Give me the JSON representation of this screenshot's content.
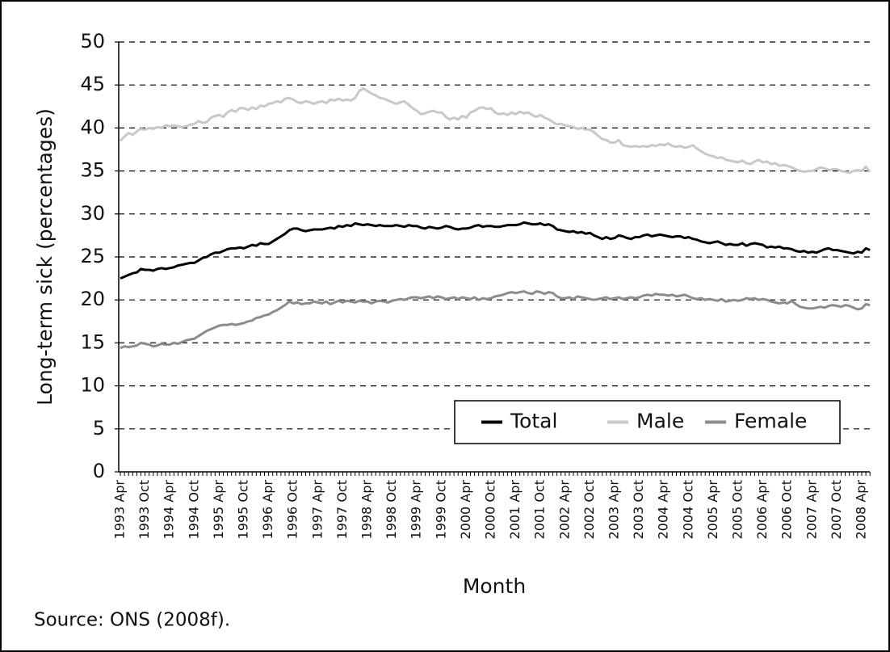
{
  "chart_data": {
    "type": "line",
    "y_label": "Long-term sick (percentages)",
    "x_label": "Month",
    "source": "Source: ONS (2008f).",
    "legend": "lower right",
    "grid": true,
    "ylim": [
      0,
      50
    ],
    "yticks": [
      0,
      5,
      10,
      15,
      20,
      25,
      30,
      35,
      40,
      45,
      50
    ],
    "categories": [
      "1993 Apr",
      null,
      null,
      null,
      null,
      null,
      "1993 Oct",
      null,
      null,
      null,
      null,
      null,
      "1994 Apr",
      null,
      null,
      null,
      null,
      null,
      "1994 Oct",
      null,
      null,
      null,
      null,
      null,
      "1995 Apr",
      null,
      null,
      null,
      null,
      null,
      "1995 Oct",
      null,
      null,
      null,
      null,
      null,
      "1996 Apr",
      null,
      null,
      null,
      null,
      null,
      "1996 Oct",
      null,
      null,
      null,
      null,
      null,
      "1997 Apr",
      null,
      null,
      null,
      null,
      null,
      "1997 Oct",
      null,
      null,
      null,
      null,
      null,
      "1998 Apr",
      null,
      null,
      null,
      null,
      null,
      "1998 Oct",
      null,
      null,
      null,
      null,
      null,
      "1999 Apr",
      null,
      null,
      null,
      null,
      null,
      "1999 Oct",
      null,
      null,
      null,
      null,
      null,
      "2000 Apr",
      null,
      null,
      null,
      null,
      null,
      "2000 Oct",
      null,
      null,
      null,
      null,
      null,
      "2001 Apr",
      null,
      null,
      null,
      null,
      null,
      "2001 Oct",
      null,
      null,
      null,
      null,
      null,
      "2002 Apr",
      null,
      null,
      null,
      null,
      null,
      "2002 Oct",
      null,
      null,
      null,
      null,
      null,
      "2003 Apr",
      null,
      null,
      null,
      null,
      null,
      "2003 Oct",
      null,
      null,
      null,
      null,
      null,
      "2004 Apr",
      null,
      null,
      null,
      null,
      null,
      "2004 Oct",
      null,
      null,
      null,
      null,
      null,
      "2005 Apr",
      null,
      null,
      null,
      null,
      null,
      "2005 Oct",
      null,
      null,
      null,
      null,
      null,
      "2006 Apr",
      null,
      null,
      null,
      null,
      null,
      "2006 Oct",
      null,
      null,
      null,
      null,
      null,
      "2007 Apr",
      null,
      null,
      null,
      null,
      null,
      "2007 Oct",
      null,
      null,
      null,
      null,
      null,
      "2008 Apr",
      null,
      null
    ],
    "series": [
      {
        "name": "Total",
        "color": "#000000",
        "values": [
          22.5,
          22.7,
          22.9,
          23.1,
          23.2,
          23.6,
          23.5,
          23.5,
          23.4,
          23.6,
          23.7,
          23.6,
          23.7,
          23.8,
          24.0,
          24.1,
          24.2,
          24.3,
          24.3,
          24.6,
          24.9,
          25.0,
          25.3,
          25.5,
          25.5,
          25.7,
          25.9,
          26.0,
          26.0,
          26.1,
          26.0,
          26.2,
          26.4,
          26.3,
          26.6,
          26.5,
          26.5,
          26.8,
          27.1,
          27.4,
          27.7,
          28.1,
          28.3,
          28.3,
          28.1,
          28.0,
          28.1,
          28.2,
          28.2,
          28.2,
          28.3,
          28.4,
          28.3,
          28.6,
          28.5,
          28.7,
          28.6,
          28.9,
          28.8,
          28.7,
          28.8,
          28.7,
          28.6,
          28.7,
          28.6,
          28.6,
          28.6,
          28.7,
          28.6,
          28.5,
          28.7,
          28.6,
          28.6,
          28.4,
          28.3,
          28.5,
          28.4,
          28.3,
          28.4,
          28.6,
          28.5,
          28.3,
          28.2,
          28.3,
          28.3,
          28.4,
          28.6,
          28.7,
          28.5,
          28.6,
          28.6,
          28.5,
          28.5,
          28.6,
          28.7,
          28.7,
          28.7,
          28.8,
          29.0,
          28.9,
          28.8,
          28.8,
          28.9,
          28.7,
          28.8,
          28.6,
          28.2,
          28.1,
          28.0,
          27.9,
          28.0,
          27.8,
          27.9,
          27.7,
          27.8,
          27.5,
          27.3,
          27.1,
          27.3,
          27.1,
          27.2,
          27.5,
          27.4,
          27.2,
          27.1,
          27.3,
          27.3,
          27.5,
          27.6,
          27.4,
          27.5,
          27.6,
          27.5,
          27.4,
          27.3,
          27.4,
          27.4,
          27.2,
          27.3,
          27.1,
          27.0,
          26.8,
          26.7,
          26.6,
          26.7,
          26.8,
          26.6,
          26.4,
          26.5,
          26.4,
          26.4,
          26.6,
          26.3,
          26.5,
          26.6,
          26.5,
          26.4,
          26.1,
          26.2,
          26.1,
          26.2,
          26.0,
          26.0,
          25.9,
          25.7,
          25.6,
          25.7,
          25.5,
          25.6,
          25.5,
          25.7,
          25.9,
          26.0,
          25.8,
          25.8,
          25.7,
          25.6,
          25.5,
          25.4,
          25.6,
          25.5,
          26.0,
          25.8
        ]
      },
      {
        "name": "Male",
        "color": "#c8c8c8",
        "values": [
          38.5,
          39.0,
          39.4,
          39.2,
          39.6,
          39.9,
          39.8,
          40.0,
          39.9,
          40.1,
          40.0,
          40.3,
          40.2,
          40.3,
          40.2,
          40.1,
          40.2,
          40.4,
          40.5,
          40.8,
          40.6,
          40.7,
          41.2,
          41.4,
          41.5,
          41.3,
          41.8,
          42.1,
          41.9,
          42.3,
          42.3,
          42.1,
          42.4,
          42.2,
          42.6,
          42.5,
          42.8,
          42.9,
          43.1,
          43.0,
          43.4,
          43.5,
          43.3,
          43.0,
          42.9,
          43.1,
          43.0,
          42.8,
          43.0,
          43.1,
          42.9,
          43.3,
          43.2,
          43.4,
          43.2,
          43.3,
          43.2,
          43.5,
          44.3,
          44.6,
          44.3,
          44.0,
          43.8,
          43.5,
          43.4,
          43.2,
          43.0,
          42.8,
          43.0,
          43.1,
          42.7,
          42.3,
          42.0,
          41.6,
          41.7,
          41.9,
          42.0,
          41.8,
          41.8,
          41.3,
          41.0,
          41.2,
          41.0,
          41.4,
          41.2,
          41.8,
          42.0,
          42.3,
          42.4,
          42.2,
          42.3,
          41.8,
          41.6,
          41.7,
          41.5,
          41.8,
          41.6,
          41.9,
          41.7,
          41.8,
          41.5,
          41.3,
          41.5,
          41.2,
          41.0,
          40.7,
          40.4,
          40.5,
          40.3,
          40.2,
          40.1,
          39.9,
          40.0,
          39.8,
          39.8,
          39.5,
          39.1,
          38.7,
          38.6,
          38.3,
          38.3,
          38.6,
          38.0,
          37.9,
          37.8,
          37.9,
          37.8,
          37.9,
          37.8,
          38.0,
          37.9,
          38.1,
          38.0,
          38.2,
          37.9,
          37.8,
          37.9,
          37.7,
          37.8,
          38.0,
          37.6,
          37.3,
          37.0,
          36.8,
          36.7,
          36.5,
          36.6,
          36.3,
          36.2,
          36.1,
          36.0,
          36.2,
          35.9,
          35.8,
          36.1,
          36.3,
          36.0,
          36.1,
          35.8,
          35.9,
          35.6,
          35.7,
          35.6,
          35.4,
          35.2,
          35.0,
          34.9,
          35.0,
          35.0,
          35.2,
          35.4,
          35.3,
          35.1,
          35.2,
          35.2,
          35.0,
          34.9,
          34.8,
          35.0,
          35.1,
          35.0,
          35.5,
          34.9
        ]
      },
      {
        "name": "Female",
        "color": "#8c8c8c",
        "values": [
          14.4,
          14.6,
          14.5,
          14.6,
          14.7,
          15.0,
          14.9,
          14.8,
          14.6,
          14.7,
          14.9,
          14.8,
          14.8,
          15.0,
          14.9,
          15.1,
          15.3,
          15.4,
          15.5,
          15.8,
          16.1,
          16.4,
          16.6,
          16.8,
          17.0,
          17.1,
          17.1,
          17.2,
          17.1,
          17.2,
          17.3,
          17.5,
          17.6,
          17.9,
          18.0,
          18.2,
          18.3,
          18.6,
          18.8,
          19.1,
          19.4,
          19.8,
          19.6,
          19.7,
          19.5,
          19.6,
          19.6,
          19.8,
          19.7,
          19.6,
          19.8,
          19.5,
          19.7,
          19.9,
          19.7,
          19.9,
          19.8,
          19.7,
          19.9,
          19.8,
          19.8,
          19.6,
          19.8,
          19.9,
          19.8,
          19.7,
          19.9,
          20.0,
          20.1,
          20.0,
          20.2,
          20.3,
          20.3,
          20.2,
          20.3,
          20.4,
          20.2,
          20.4,
          20.3,
          20.1,
          20.2,
          20.3,
          20.1,
          20.3,
          20.2,
          20.1,
          20.3,
          20.0,
          20.2,
          20.1,
          20.2,
          20.4,
          20.5,
          20.6,
          20.8,
          20.9,
          20.8,
          20.9,
          21.0,
          20.8,
          20.7,
          21.0,
          20.9,
          20.7,
          20.9,
          20.8,
          20.4,
          20.2,
          20.2,
          20.3,
          20.1,
          20.4,
          20.3,
          20.2,
          20.1,
          20.0,
          20.1,
          20.2,
          20.3,
          20.1,
          20.2,
          20.3,
          20.1,
          20.2,
          20.3,
          20.2,
          20.3,
          20.5,
          20.6,
          20.5,
          20.7,
          20.6,
          20.6,
          20.5,
          20.6,
          20.4,
          20.5,
          20.6,
          20.4,
          20.2,
          20.1,
          20.2,
          20.0,
          20.1,
          20.0,
          19.9,
          20.1,
          19.8,
          19.9,
          20.0,
          19.9,
          20.0,
          20.2,
          20.1,
          20.2,
          20.0,
          20.1,
          20.0,
          19.8,
          19.7,
          19.6,
          19.7,
          19.6,
          19.9,
          19.5,
          19.2,
          19.1,
          19.0,
          19.0,
          19.1,
          19.2,
          19.1,
          19.3,
          19.4,
          19.3,
          19.2,
          19.4,
          19.3,
          19.1,
          18.9,
          19.0,
          19.5,
          19.4
        ]
      }
    ]
  }
}
